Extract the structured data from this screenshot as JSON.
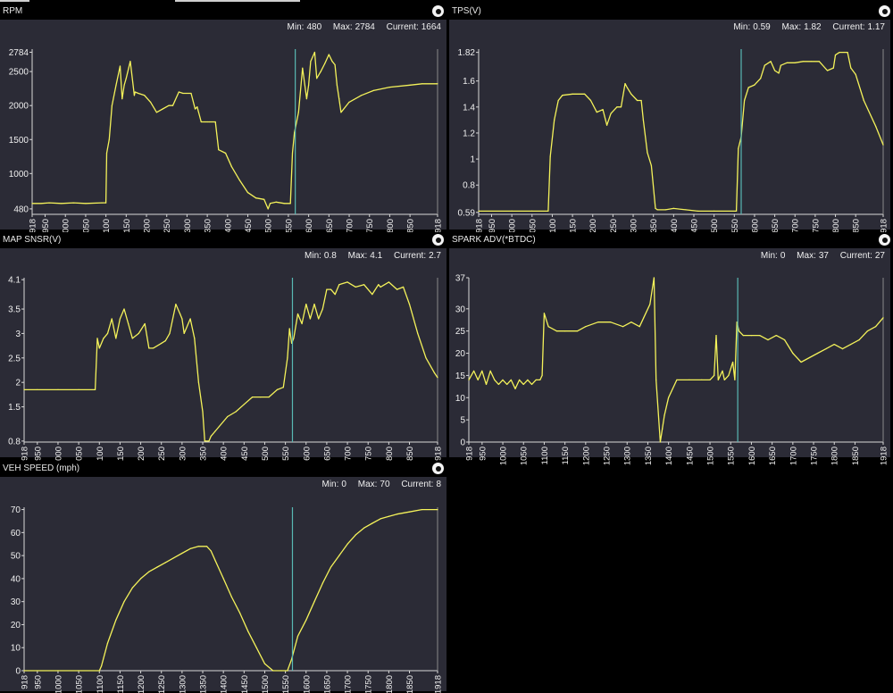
{
  "charts": [
    {
      "id": "rpm",
      "title": "RPM",
      "stats": {
        "min_label": "Min:",
        "min": "480",
        "max_label": "Max:",
        "max": "2784",
        "current_label": "Current:",
        "current": "1664"
      },
      "chart_data": {
        "type": "line",
        "title": "RPM",
        "xlim": [
          918,
          1918
        ],
        "ylim": [
          400,
          2830
        ],
        "yticks": [
          480,
          1000,
          1500,
          2000,
          2500,
          2784
        ],
        "xticks": [
          918,
          950,
          1000,
          1050,
          1100,
          1150,
          1200,
          1250,
          1300,
          1350,
          1400,
          1450,
          1500,
          1550,
          1600,
          1650,
          1700,
          1750,
          1800,
          1850,
          1918
        ],
        "cursor_x": 1567,
        "color": "#f4f25a",
        "x": [
          918,
          940,
          960,
          990,
          1020,
          1050,
          1090,
          1100,
          1102,
          1108,
          1115,
          1125,
          1135,
          1140,
          1145,
          1150,
          1160,
          1170,
          1172,
          1180,
          1195,
          1210,
          1225,
          1240,
          1255,
          1265,
          1280,
          1290,
          1310,
          1320,
          1325,
          1335,
          1345,
          1350,
          1355,
          1370,
          1378,
          1395,
          1410,
          1430,
          1450,
          1470,
          1490,
          1500,
          1505,
          1520,
          1540,
          1555,
          1560,
          1565,
          1575,
          1585,
          1595,
          1600,
          1605,
          1615,
          1620,
          1630,
          1640,
          1650,
          1658,
          1665,
          1670,
          1675,
          1680,
          1700,
          1730,
          1760,
          1800,
          1850,
          1880,
          1918
        ],
        "y": [
          560,
          560,
          570,
          560,
          570,
          560,
          570,
          570,
          1300,
          1500,
          2000,
          2300,
          2580,
          2100,
          2300,
          2400,
          2650,
          2150,
          2200,
          2180,
          2150,
          2050,
          1900,
          1950,
          2000,
          2000,
          2200,
          2180,
          2180,
          1950,
          1980,
          1760,
          1760,
          1760,
          1760,
          1760,
          1350,
          1300,
          1100,
          900,
          720,
          640,
          620,
          480,
          560,
          580,
          560,
          560,
          1300,
          1600,
          1900,
          2550,
          2100,
          2300,
          2650,
          2784,
          2400,
          2500,
          2620,
          2750,
          2650,
          2600,
          2300,
          2100,
          1900,
          2050,
          2150,
          2220,
          2270,
          2300,
          2320,
          2320
        ]
      }
    },
    {
      "id": "tps",
      "title": "TPS(V)",
      "stats": {
        "min_label": "Min:",
        "min": "0.59",
        "max_label": "Max:",
        "max": "1.82",
        "current_label": "Current:",
        "current": "1.17"
      },
      "chart_data": {
        "type": "line",
        "title": "TPS(V)",
        "xlim": [
          918,
          1918
        ],
        "ylim": [
          0.575,
          1.845
        ],
        "yticks": [
          0.59,
          0.8,
          1.0,
          1.2,
          1.4,
          1.6,
          1.82
        ],
        "xticks": [
          918,
          950,
          1000,
          1050,
          1100,
          1150,
          1200,
          1250,
          1300,
          1350,
          1400,
          1450,
          1500,
          1550,
          1600,
          1650,
          1700,
          1750,
          1800,
          1850,
          1918
        ],
        "cursor_x": 1567,
        "color": "#f4f25a",
        "x": [
          918,
          1000,
          1050,
          1090,
          1095,
          1105,
          1115,
          1125,
          1150,
          1180,
          1195,
          1210,
          1225,
          1235,
          1245,
          1260,
          1270,
          1280,
          1285,
          1295,
          1310,
          1320,
          1325,
          1335,
          1345,
          1355,
          1360,
          1380,
          1400,
          1430,
          1460,
          1500,
          1555,
          1560,
          1567,
          1575,
          1585,
          1600,
          1615,
          1625,
          1640,
          1650,
          1660,
          1665,
          1680,
          1700,
          1720,
          1740,
          1760,
          1780,
          1795,
          1800,
          1810,
          1830,
          1838,
          1850,
          1870,
          1900,
          1918
        ],
        "y": [
          0.6,
          0.6,
          0.6,
          0.6,
          1.02,
          1.3,
          1.45,
          1.49,
          1.5,
          1.5,
          1.45,
          1.36,
          1.38,
          1.26,
          1.35,
          1.4,
          1.4,
          1.58,
          1.55,
          1.5,
          1.45,
          1.45,
          1.3,
          1.05,
          0.95,
          0.62,
          0.61,
          0.61,
          0.62,
          0.61,
          0.6,
          0.6,
          0.6,
          1.08,
          1.17,
          1.45,
          1.55,
          1.57,
          1.62,
          1.72,
          1.75,
          1.68,
          1.66,
          1.72,
          1.74,
          1.74,
          1.75,
          1.75,
          1.75,
          1.68,
          1.7,
          1.8,
          1.82,
          1.82,
          1.7,
          1.65,
          1.45,
          1.25,
          1.11
        ]
      }
    },
    {
      "id": "map",
      "title": "MAP SNSR(V)",
      "stats": {
        "min_label": "Min:",
        "min": "0.8",
        "max_label": "Max:",
        "max": "4.1",
        "current_label": "Current:",
        "current": "2.7"
      },
      "chart_data": {
        "type": "line",
        "title": "MAP SNSR(V)",
        "xlim": [
          918,
          1918
        ],
        "ylim": [
          0.78,
          4.14
        ],
        "yticks": [
          0.8,
          1.5,
          2.0,
          2.5,
          3.0,
          3.5,
          4.1
        ],
        "xticks": [
          918,
          950,
          1000,
          1050,
          1100,
          1150,
          1200,
          1250,
          1300,
          1350,
          1400,
          1450,
          1500,
          1550,
          1600,
          1650,
          1700,
          1750,
          1800,
          1850,
          1918
        ],
        "cursor_x": 1567,
        "color": "#f4f25a",
        "x": [
          918,
          950,
          1000,
          1050,
          1090,
          1095,
          1100,
          1110,
          1120,
          1130,
          1140,
          1150,
          1160,
          1170,
          1180,
          1195,
          1210,
          1220,
          1230,
          1250,
          1260,
          1270,
          1285,
          1295,
          1300,
          1305,
          1320,
          1330,
          1340,
          1350,
          1355,
          1365,
          1370,
          1380,
          1390,
          1410,
          1430,
          1450,
          1470,
          1490,
          1510,
          1530,
          1545,
          1555,
          1560,
          1565,
          1570,
          1580,
          1590,
          1600,
          1610,
          1620,
          1630,
          1640,
          1650,
          1660,
          1670,
          1680,
          1700,
          1720,
          1740,
          1760,
          1775,
          1780,
          1800,
          1820,
          1835,
          1850,
          1870,
          1890,
          1910,
          1918
        ],
        "y": [
          1.85,
          1.85,
          1.85,
          1.85,
          1.85,
          2.9,
          2.7,
          2.9,
          3.0,
          3.3,
          2.9,
          3.3,
          3.5,
          3.2,
          2.9,
          3.0,
          3.2,
          2.7,
          2.7,
          2.8,
          2.85,
          3.0,
          3.6,
          3.4,
          3.3,
          3.0,
          3.3,
          2.9,
          2.0,
          1.4,
          0.8,
          0.8,
          0.9,
          1.0,
          1.1,
          1.3,
          1.4,
          1.55,
          1.7,
          1.7,
          1.7,
          1.85,
          1.9,
          2.5,
          3.1,
          2.8,
          2.9,
          3.4,
          3.2,
          3.6,
          3.3,
          3.6,
          3.3,
          3.5,
          3.9,
          3.9,
          3.8,
          4.0,
          4.05,
          3.95,
          4.0,
          3.8,
          4.0,
          3.95,
          4.05,
          3.9,
          3.95,
          3.6,
          3.0,
          2.5,
          2.2,
          2.1
        ]
      }
    },
    {
      "id": "spark",
      "title": "SPARK ADV(*BTDC)",
      "stats": {
        "min_label": "Min:",
        "min": "0",
        "max_label": "Max:",
        "max": "37",
        "current_label": "Current:",
        "current": "27"
      },
      "chart_data": {
        "type": "line",
        "title": "SPARK ADV(*BTDC)",
        "xlim": [
          918,
          1918
        ],
        "ylim": [
          0,
          37
        ],
        "yticks": [
          0,
          5,
          10,
          15,
          20,
          25,
          30,
          37
        ],
        "xticks": [
          918,
          950,
          1000,
          1050,
          1100,
          1150,
          1200,
          1250,
          1300,
          1350,
          1400,
          1450,
          1500,
          1550,
          1600,
          1650,
          1700,
          1750,
          1800,
          1850,
          1918
        ],
        "cursor_x": 1567,
        "color": "#f4f25a",
        "x": [
          918,
          930,
          940,
          950,
          960,
          970,
          980,
          990,
          1000,
          1010,
          1020,
          1030,
          1040,
          1050,
          1060,
          1070,
          1080,
          1090,
          1095,
          1100,
          1110,
          1130,
          1150,
          1180,
          1200,
          1230,
          1260,
          1290,
          1310,
          1330,
          1340,
          1355,
          1365,
          1370,
          1380,
          1385,
          1390,
          1400,
          1420,
          1450,
          1480,
          1500,
          1510,
          1515,
          1520,
          1530,
          1535,
          1545,
          1555,
          1560,
          1565,
          1570,
          1580,
          1600,
          1620,
          1640,
          1660,
          1680,
          1700,
          1720,
          1740,
          1760,
          1780,
          1800,
          1820,
          1840,
          1860,
          1880,
          1900,
          1918
        ],
        "y": [
          14,
          16,
          14,
          16,
          13,
          16,
          14,
          13,
          14,
          13,
          14,
          12,
          14,
          13,
          14,
          13,
          14,
          14,
          15,
          29,
          26,
          25,
          25,
          25,
          26,
          27,
          27,
          26,
          27,
          26,
          28,
          31,
          37,
          14,
          0,
          3,
          6,
          10,
          14,
          14,
          14,
          14,
          15,
          24,
          14,
          16,
          14,
          15,
          18,
          14,
          27,
          25,
          24,
          24,
          24,
          23,
          24,
          23,
          20,
          18,
          19,
          20,
          21,
          22,
          21,
          22,
          23,
          25,
          26,
          28
        ]
      }
    },
    {
      "id": "speed",
      "title": "VEH SPEED (mph)",
      "stats": {
        "min_label": "Min:",
        "min": "0",
        "max_label": "Max:",
        "max": "70",
        "current_label": "Current:",
        "current": "8"
      },
      "chart_data": {
        "type": "line",
        "title": "VEH SPEED (mph)",
        "xlim": [
          918,
          1918
        ],
        "ylim": [
          0,
          71
        ],
        "yticks": [
          0,
          10,
          20,
          30,
          40,
          50,
          60,
          70
        ],
        "xticks": [
          918,
          950,
          1000,
          1050,
          1100,
          1150,
          1200,
          1250,
          1300,
          1350,
          1400,
          1450,
          1500,
          1550,
          1600,
          1650,
          1700,
          1750,
          1800,
          1850,
          1918
        ],
        "cursor_x": 1567,
        "color": "#f4f25a",
        "x": [
          918,
          1000,
          1050,
          1100,
          1105,
          1120,
          1140,
          1160,
          1180,
          1200,
          1220,
          1240,
          1260,
          1280,
          1300,
          1320,
          1340,
          1360,
          1370,
          1380,
          1400,
          1420,
          1440,
          1460,
          1480,
          1500,
          1520,
          1540,
          1555,
          1565,
          1580,
          1600,
          1620,
          1640,
          1660,
          1680,
          1700,
          1720,
          1740,
          1760,
          1780,
          1800,
          1820,
          1850,
          1880,
          1918
        ],
        "y": [
          0,
          0,
          0,
          0,
          2,
          12,
          22,
          30,
          36,
          40,
          43,
          45,
          47,
          49,
          51,
          53,
          54,
          54,
          52,
          48,
          40,
          32,
          25,
          17,
          10,
          3,
          0,
          0,
          0,
          5,
          15,
          22,
          30,
          38,
          45,
          50,
          55,
          59,
          62,
          64,
          66,
          67,
          68,
          69,
          70,
          70
        ]
      }
    }
  ]
}
